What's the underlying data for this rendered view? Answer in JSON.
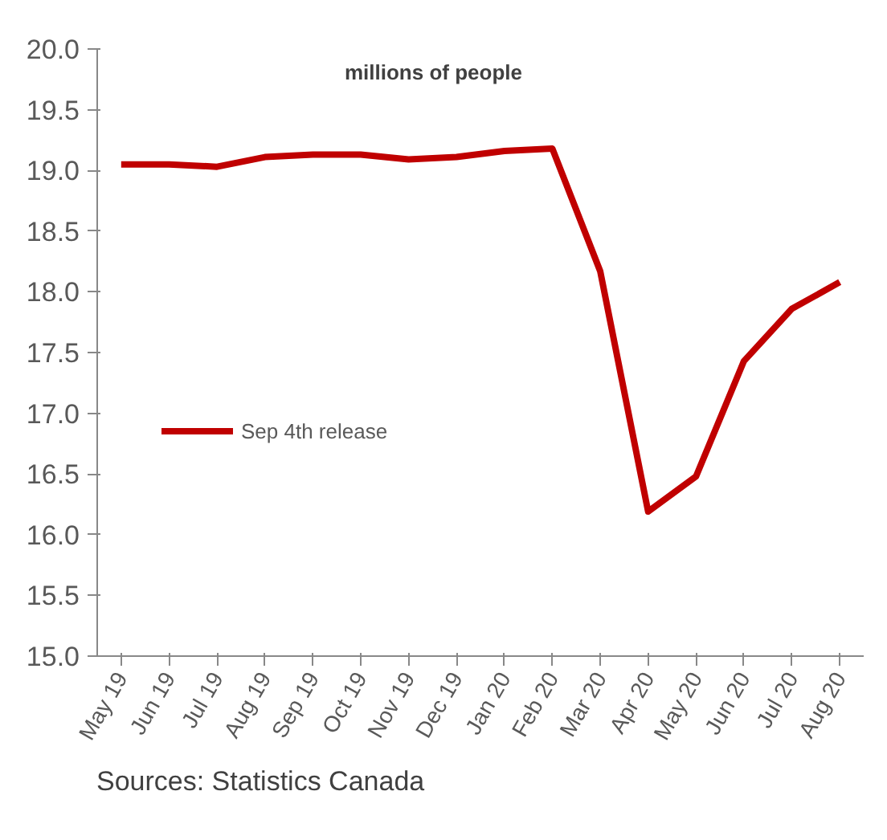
{
  "chart_data": {
    "type": "line",
    "ylabel": "millions of people",
    "categories": [
      "May 19",
      "Jun 19",
      "Jul 19",
      "Aug 19",
      "Sep 19",
      "Oct 19",
      "Nov 19",
      "Dec 19",
      "Jan 20",
      "Feb 20",
      "Mar 20",
      "Apr 20",
      "May 20",
      "Jun 20",
      "Jul 20",
      "Aug 20"
    ],
    "series": [
      {
        "name": "Sep 4th release",
        "color": "#c00000",
        "values": [
          19.05,
          19.05,
          19.03,
          19.11,
          19.13,
          19.13,
          19.09,
          19.11,
          19.16,
          19.18,
          18.17,
          16.19,
          16.48,
          17.43,
          17.86,
          18.08
        ]
      }
    ],
    "ylim": [
      15.0,
      20.0
    ],
    "yticks": [
      {
        "value": 15,
        "label": "15.0"
      },
      {
        "value": 15.5,
        "label": "15.5"
      },
      {
        "value": 16,
        "label": "16.0"
      },
      {
        "value": 16.5,
        "label": "16.5"
      },
      {
        "value": 17,
        "label": "17.0"
      },
      {
        "value": 17.5,
        "label": "17.5"
      },
      {
        "value": 18,
        "label": "18.0"
      },
      {
        "value": 18.5,
        "label": "18.5"
      },
      {
        "value": 19,
        "label": "19.0"
      },
      {
        "value": 19.5,
        "label": "19.5"
      },
      {
        "value": 20,
        "label": "20.0"
      }
    ],
    "grid": false,
    "legend": "left",
    "line_style": "solid",
    "marker": "none",
    "annotations": [
      "Sources: Statistics Canada"
    ]
  }
}
